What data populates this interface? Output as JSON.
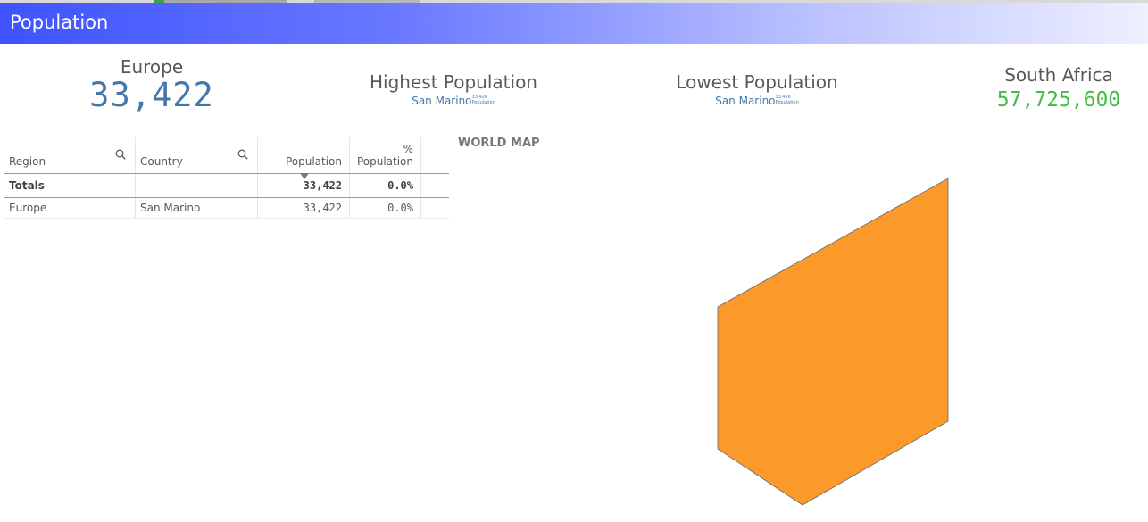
{
  "header": {
    "title": "Population"
  },
  "kpis": {
    "europe": {
      "label": "Europe",
      "value": "33,422"
    },
    "highest": {
      "label": "Highest Population",
      "country": "San Marino",
      "tiny_value": "33.42k",
      "tiny_label": "Population"
    },
    "lowest": {
      "label": "Lowest Population",
      "country": "San Marino",
      "tiny_value": "33.42k",
      "tiny_label": "Population"
    },
    "south_africa": {
      "label": "South Africa",
      "value": "57,725,600"
    }
  },
  "table": {
    "columns": {
      "region": "Region",
      "country": "Country",
      "population": "Population",
      "pct_symbol": "%",
      "pct": "Population"
    },
    "totals": {
      "label": "Totals",
      "population": "33,422",
      "pct": "0.0%"
    },
    "rows": [
      {
        "region": "Europe",
        "country": "San Marino",
        "population": "33,422",
        "pct": "0.0%"
      }
    ]
  },
  "map": {
    "title": "WORLD MAP",
    "fill_color": "#fb9a2a"
  },
  "icons": {
    "column_search": "search-icon",
    "sort": "sort-desc-icon"
  }
}
